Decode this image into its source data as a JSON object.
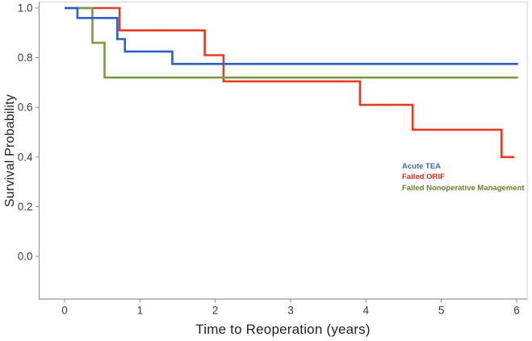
{
  "chart_data": {
    "type": "line",
    "subtype": "kaplan-meier-step",
    "title": "",
    "xlabel": "Time to Reoperation (years)",
    "ylabel": "Survival Probability",
    "xlim": [
      -0.35,
      6.15
    ],
    "ylim": [
      -0.17,
      1.03
    ],
    "x_ticks": [
      "0",
      "1",
      "2",
      "3",
      "4",
      "5",
      "6"
    ],
    "y_ticks": [
      "1.0",
      "0.8",
      "0.6",
      "0.4",
      "0.2",
      "0.0"
    ],
    "grid": false,
    "legend_position": "inside-right",
    "axes": {
      "box_color": "#d2d2d2",
      "axis_color": "#979797",
      "tick_color": "#8a8a8a",
      "tick_label_color": "#3d3d3d",
      "title_color": "#1f1f1f"
    },
    "series": [
      {
        "name": "Acute TEA",
        "color": "#2e5fc8",
        "legend_color": "#3e68c6",
        "points": [
          [
            0,
            1.0
          ],
          [
            0.17,
            1.0
          ],
          [
            0.17,
            0.96
          ],
          [
            0.7,
            0.96
          ],
          [
            0.7,
            0.875
          ],
          [
            0.8,
            0.875
          ],
          [
            0.8,
            0.825
          ],
          [
            1.43,
            0.825
          ],
          [
            1.43,
            0.775
          ],
          [
            6.02,
            0.775
          ]
        ]
      },
      {
        "name": "Failed ORIF",
        "color": "#e63b23",
        "legend_color": "#d92d20",
        "points": [
          [
            0,
            1.0
          ],
          [
            0.73,
            1.0
          ],
          [
            0.73,
            0.91
          ],
          [
            1.86,
            0.91
          ],
          [
            1.86,
            0.81
          ],
          [
            2.11,
            0.81
          ],
          [
            2.11,
            0.705
          ],
          [
            3.92,
            0.705
          ],
          [
            3.92,
            0.61
          ],
          [
            4.62,
            0.61
          ],
          [
            4.62,
            0.51
          ],
          [
            5.8,
            0.51
          ],
          [
            5.8,
            0.4
          ],
          [
            5.97,
            0.4
          ]
        ]
      },
      {
        "name": "Failed Nonoperative Management",
        "color": "#7a9a43",
        "legend_color": "#6d7c2a",
        "points": [
          [
            0,
            1.0
          ],
          [
            0.37,
            1.0
          ],
          [
            0.37,
            0.86
          ],
          [
            0.53,
            0.86
          ],
          [
            0.53,
            0.72
          ],
          [
            6.02,
            0.72
          ]
        ]
      }
    ]
  }
}
